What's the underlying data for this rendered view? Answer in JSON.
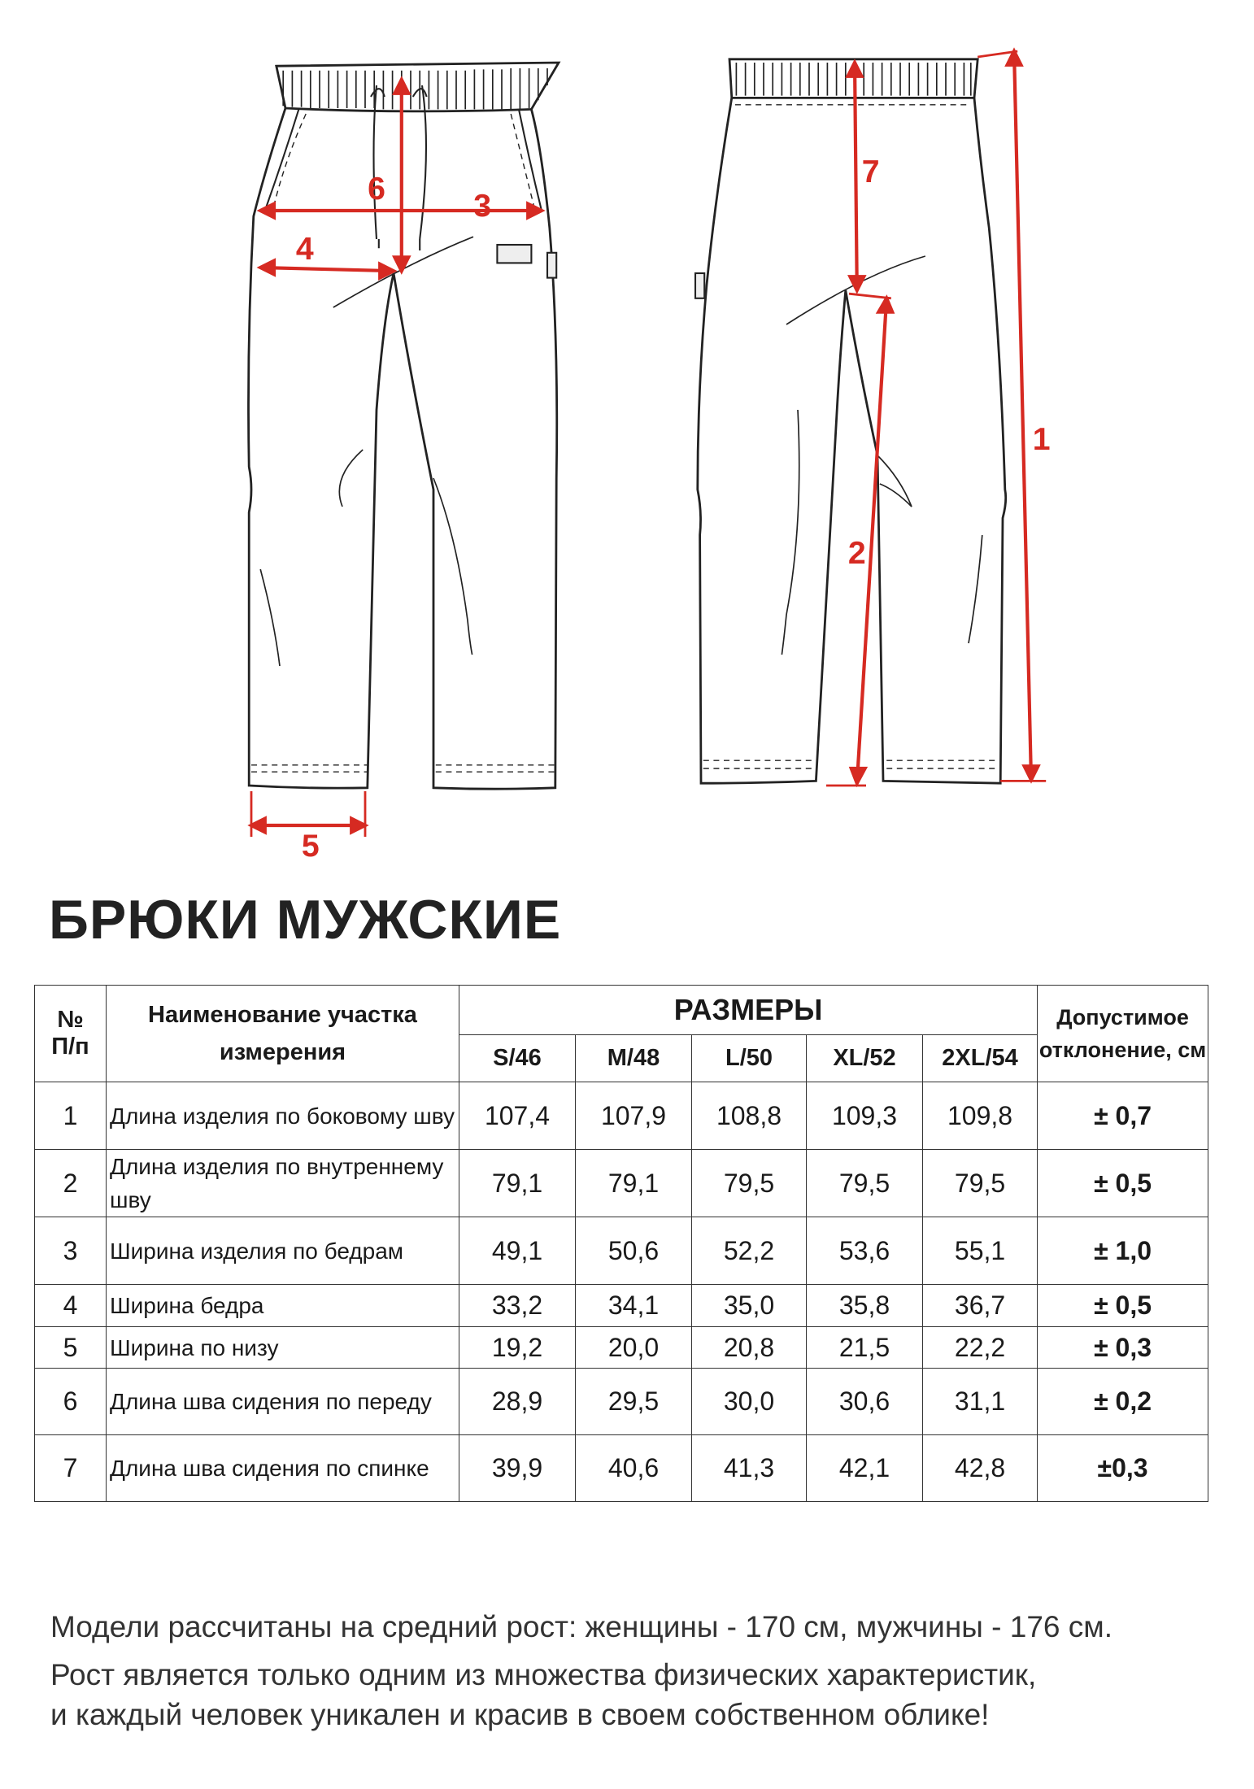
{
  "diagram": {
    "labels": [
      "1",
      "2",
      "3",
      "4",
      "5",
      "6",
      "7"
    ],
    "accent_color": "#d62a22"
  },
  "title": "БРЮКИ МУЖСКИЕ",
  "table": {
    "headers": {
      "num": [
        "№",
        "П/п"
      ],
      "name": "Наименование участка измерения",
      "sizes_group": "РАЗМЕРЫ",
      "tolerance": "Допустимое отклонение, см"
    },
    "sizes": [
      "S/46",
      "M/48",
      "L/50",
      "XL/52",
      "2XL/54"
    ],
    "rows": [
      {
        "num": "1",
        "name": "Длина изделия по боковому шву",
        "values": [
          "107,4",
          "107,9",
          "108,8",
          "109,3",
          "109,8"
        ],
        "tol": "± 0,7"
      },
      {
        "num": "2",
        "name": "Длина изделия по внутреннему шву",
        "values": [
          "79,1",
          "79,1",
          "79,5",
          "79,5",
          "79,5"
        ],
        "tol": "± 0,5"
      },
      {
        "num": "3",
        "name": "Ширина изделия по бедрам",
        "values": [
          "49,1",
          "50,6",
          "52,2",
          "53,6",
          "55,1"
        ],
        "tol": "± 1,0"
      },
      {
        "num": "4",
        "name": "Ширина бедра",
        "values": [
          "33,2",
          "34,1",
          "35,0",
          "35,8",
          "36,7"
        ],
        "tol": "± 0,5"
      },
      {
        "num": "5",
        "name": "Ширина по низу",
        "values": [
          "19,2",
          "20,0",
          "20,8",
          "21,5",
          "22,2"
        ],
        "tol": "± 0,3"
      },
      {
        "num": "6",
        "name": "Длина шва сидения по переду",
        "values": [
          "28,9",
          "29,5",
          "30,0",
          "30,6",
          "31,1"
        ],
        "tol": "± 0,2"
      },
      {
        "num": "7",
        "name": "Длина шва сидения  по спинке",
        "values": [
          "39,9",
          "40,6",
          "41,3",
          "42,1",
          "42,8"
        ],
        "tol": "±0,3"
      }
    ]
  },
  "footer": {
    "line1": "Модели рассчитаны на средний рост: женщины - 170 см, мужчины - 176 см.",
    "line2": "Рост является только одним из множества физических характеристик,",
    "line3": "и каждый человек уникален и красив в своем собственном облике!"
  }
}
